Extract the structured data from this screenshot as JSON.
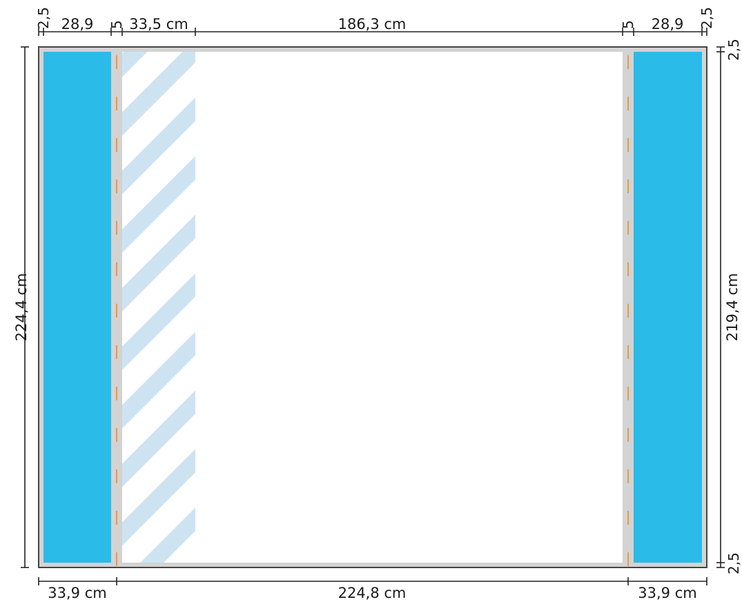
{
  "dimensions": {
    "top": {
      "margin_left": "2,5",
      "panel_left": "28,9",
      "fold_left": "5",
      "flap_left": "33,5 cm",
      "center": "186,3 cm",
      "fold_right": "5",
      "panel_right": "28,9",
      "margin_right": "2,5"
    },
    "bottom": {
      "left": "33,9 cm",
      "center": "224,8 cm",
      "right": "33,9 cm"
    },
    "left_total": "224,4 cm",
    "right": {
      "margin_top": "2,5",
      "inner": "219,4 cm",
      "margin_bottom": "2,5"
    }
  },
  "colors": {
    "panel_fill": "#2bbbe8",
    "frame_fill": "#d3d3d3",
    "hatch_stripe": "#cde3f2",
    "fold_line": "#f08a24",
    "dimension_line": "#222222"
  }
}
